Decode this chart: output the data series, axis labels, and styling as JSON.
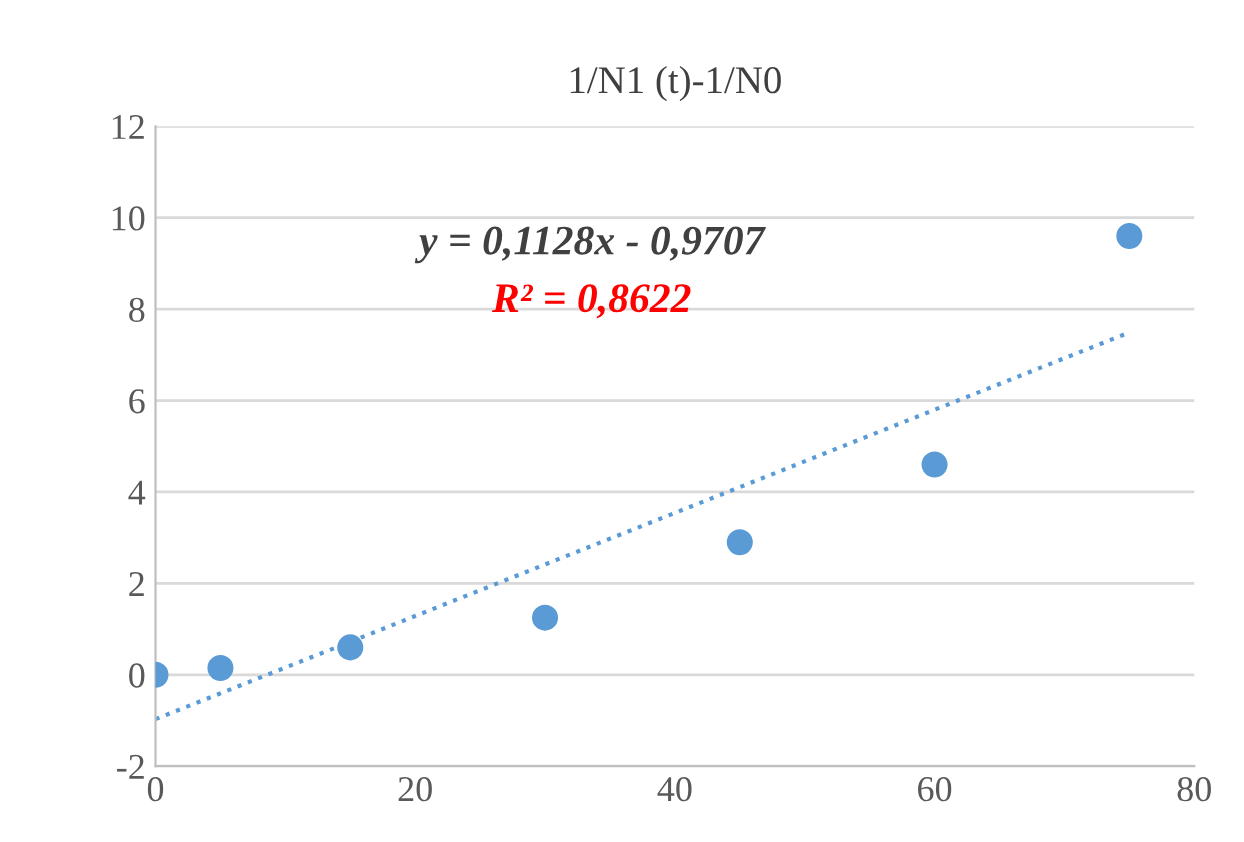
{
  "chart_data": {
    "type": "scatter",
    "title": "1/N1 (t)-1/N0",
    "series": [
      {
        "color": "#5b9bd5",
        "x": [
          0,
          5,
          15,
          30,
          45,
          60,
          75
        ],
        "values": [
          0,
          0.15,
          0.6,
          1.25,
          2.9,
          4.6,
          9.6
        ],
        "marker": "circle"
      },
      {
        "type": "line",
        "color": "#5b9bd5",
        "x": [
          0,
          75
        ],
        "values": [
          -0.97,
          7.49
        ],
        "line_style": "dotted",
        "marker": "none"
      }
    ],
    "annotations": [
      "y = 0,1128x - 0,9707",
      "R² = 0,8622"
    ],
    "xlim": [
      0,
      80
    ],
    "xticks": [
      0,
      20,
      40,
      60,
      80
    ],
    "ylim": [
      -2,
      12
    ],
    "yticks": [
      -2,
      0,
      2,
      4,
      6,
      8,
      10,
      12
    ],
    "grid": "y",
    "legend": false
  }
}
